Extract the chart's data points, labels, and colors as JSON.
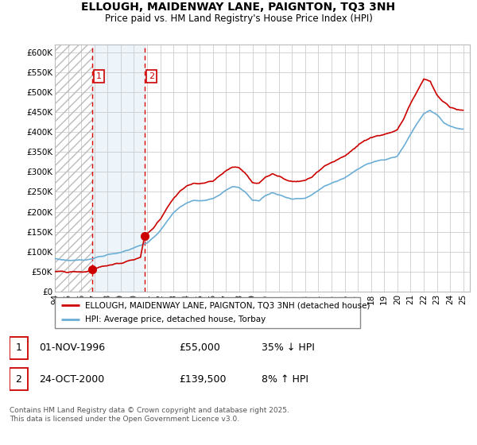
{
  "title": "ELLOUGH, MAIDENWAY LANE, PAIGNTON, TQ3 3NH",
  "subtitle": "Price paid vs. HM Land Registry's House Price Index (HPI)",
  "ylabel_ticks": [
    "£0",
    "£50K",
    "£100K",
    "£150K",
    "£200K",
    "£250K",
    "£300K",
    "£350K",
    "£400K",
    "£450K",
    "£500K",
    "£550K",
    "£600K"
  ],
  "ytick_values": [
    0,
    50000,
    100000,
    150000,
    200000,
    250000,
    300000,
    350000,
    400000,
    450000,
    500000,
    550000,
    600000
  ],
  "ylim": [
    0,
    620000
  ],
  "xmin": 1994.0,
  "xmax": 2025.5,
  "legend1_label": "ELLOUGH, MAIDENWAY LANE, PAIGNTON, TQ3 3NH (detached house)",
  "legend2_label": "HPI: Average price, detached house, Torbay",
  "sale1_label": "1",
  "sale1_date": "01-NOV-1996",
  "sale1_price": "£55,000",
  "sale1_hpi": "35% ↓ HPI",
  "sale1_x": 1996.83,
  "sale1_y": 55000,
  "sale2_label": "2",
  "sale2_date": "24-OCT-2000",
  "sale2_price": "£139,500",
  "sale2_hpi": "8% ↑ HPI",
  "sale2_x": 2000.81,
  "sale2_y": 139500,
  "hpi_color": "#6baed6",
  "price_color": "#cc0000",
  "grid_color": "#cccccc",
  "bg_color": "#f0f4ff",
  "footer": "Contains HM Land Registry data © Crown copyright and database right 2025.\nThis data is licensed under the Open Government Licence v3.0."
}
